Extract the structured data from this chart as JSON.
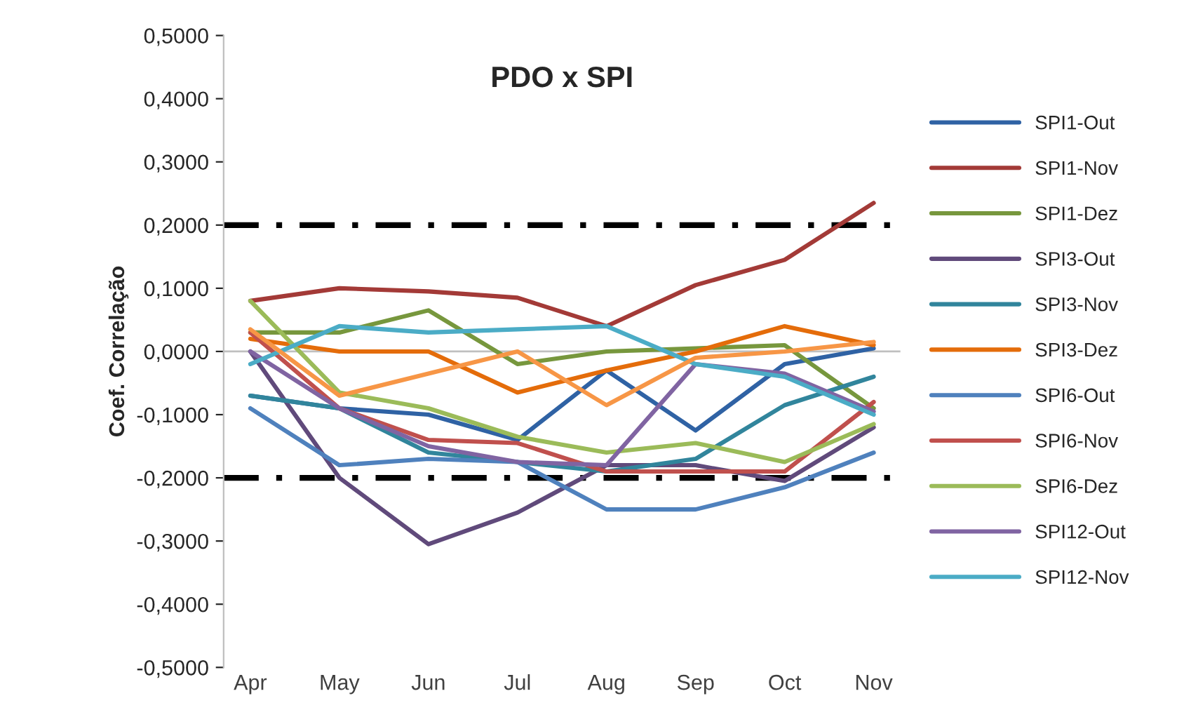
{
  "chart_data": {
    "type": "line",
    "title": "PDO x SPI",
    "ylabel": "Coef. Correlação",
    "categories": [
      "Apr",
      "May",
      "Jun",
      "Jul",
      "Aug",
      "Sep",
      "Oct",
      "Nov"
    ],
    "ylim": [
      -0.5,
      0.5
    ],
    "yticks": [
      {
        "value": -0.5,
        "label": "-0,5000"
      },
      {
        "value": -0.4,
        "label": "-0,4000"
      },
      {
        "value": -0.3,
        "label": "-0,3000"
      },
      {
        "value": -0.2,
        "label": "-0,2000"
      },
      {
        "value": -0.1,
        "label": "-0,1000"
      },
      {
        "value": 0,
        "label": "0,0000"
      },
      {
        "value": 0.1,
        "label": "0,1000"
      },
      {
        "value": 0.2,
        "label": "0,2000"
      },
      {
        "value": 0.3,
        "label": "0,3000"
      },
      {
        "value": 0.4,
        "label": "0,4000"
      },
      {
        "value": 0.5,
        "label": "0,5000"
      }
    ],
    "legend": "right",
    "marker": "none",
    "line_style": "solid",
    "ref_lines": [
      {
        "axis": "y",
        "value": 0.2,
        "color": "#000000",
        "line_style": "dashdot"
      },
      {
        "axis": "y",
        "value": -0.2,
        "color": "#000000",
        "line_style": "dashdot"
      }
    ],
    "series": [
      {
        "name": "SPI1-Out",
        "color": "#2f62a4",
        "values": [
          -0.07,
          -0.09,
          -0.1,
          -0.14,
          -0.03,
          -0.125,
          -0.02,
          0.005
        ]
      },
      {
        "name": "SPI1-Nov",
        "color": "#a33a37",
        "values": [
          0.08,
          0.1,
          0.095,
          0.085,
          0.04,
          0.105,
          0.145,
          0.235
        ]
      },
      {
        "name": "SPI1-Dez",
        "color": "#77973d",
        "values": [
          0.03,
          0.03,
          0.065,
          -0.02,
          0.0,
          0.005,
          0.01,
          -0.09
        ]
      },
      {
        "name": "SPI3-Out",
        "color": "#604a7b",
        "values": [
          0.0,
          -0.2,
          -0.305,
          -0.255,
          -0.18,
          -0.18,
          -0.205,
          -0.12
        ]
      },
      {
        "name": "SPI3-Nov",
        "color": "#31859c",
        "values": [
          -0.07,
          -0.09,
          -0.16,
          -0.175,
          -0.19,
          -0.17,
          -0.085,
          -0.04
        ]
      },
      {
        "name": "SPI3-Dez",
        "color": "#e46c0a",
        "values": [
          0.02,
          0.0,
          0.0,
          -0.065,
          -0.03,
          0.0,
          0.04,
          0.01
        ]
      },
      {
        "name": "SPI6-Out",
        "color": "#4f81bd",
        "values": [
          -0.09,
          -0.18,
          -0.17,
          -0.175,
          -0.25,
          -0.25,
          -0.215,
          -0.16
        ]
      },
      {
        "name": "SPI6-Nov",
        "color": "#c0504d",
        "values": [
          0.03,
          -0.09,
          -0.14,
          -0.145,
          -0.19,
          -0.19,
          -0.19,
          -0.08
        ]
      },
      {
        "name": "SPI6-Dez",
        "color": "#9bbb59",
        "values": [
          0.08,
          -0.065,
          -0.09,
          -0.135,
          -0.16,
          -0.145,
          -0.175,
          -0.115
        ]
      },
      {
        "name": "SPI12-Out",
        "color": "#8064a2",
        "values": [
          0.0,
          -0.09,
          -0.15,
          -0.175,
          -0.18,
          -0.02,
          -0.035,
          -0.095
        ]
      },
      {
        "name": "SPI12-Nov",
        "color": "#4bacc6",
        "values": [
          -0.02,
          0.04,
          0.03,
          0.035,
          0.04,
          -0.02,
          -0.04,
          -0.1
        ]
      },
      {
        "color": "#f79646",
        "values": [
          0.035,
          -0.07,
          -0.035,
          0.0,
          -0.085,
          -0.01,
          0.0,
          0.015
        ]
      }
    ]
  }
}
